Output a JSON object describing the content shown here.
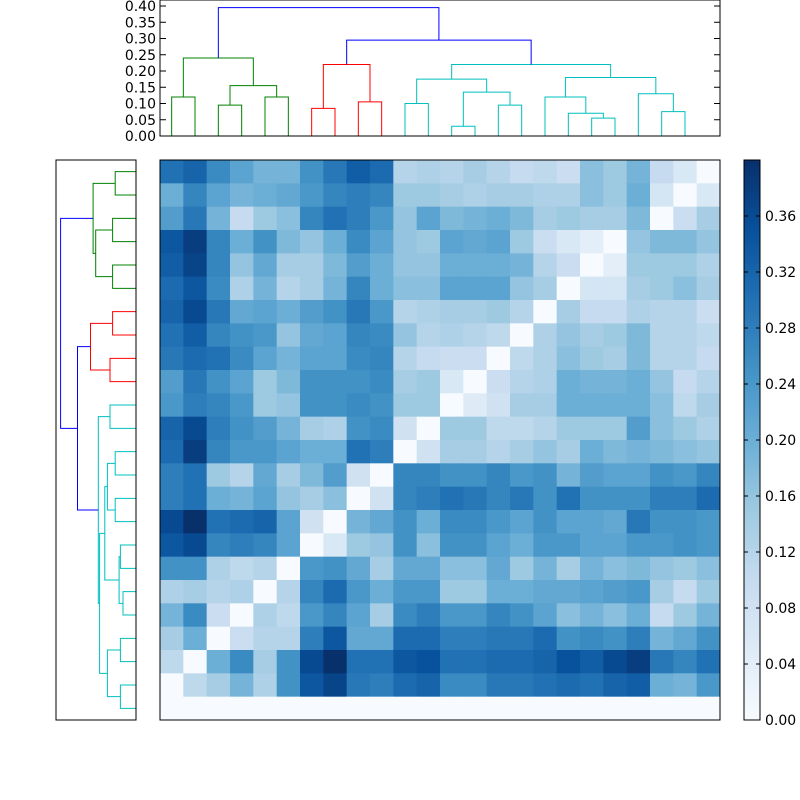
{
  "chart_data": [
    {
      "type": "dendrogram",
      "orientation": "top",
      "ylim": [
        0,
        0.4
      ],
      "ticks": [
        "0.00",
        "0.05",
        "0.10",
        "0.15",
        "0.20",
        "0.25",
        "0.30",
        "0.35",
        "0.40"
      ],
      "colors": {
        "cluster_1": "#008000",
        "cluster_2": "#ff0000",
        "cluster_3": "#00bfbf",
        "root": "#0000ff"
      },
      "links": [
        {
          "l": 0.5,
          "r": 1.5,
          "lh": 0.0,
          "rh": 0.0,
          "h": 0.12,
          "color": "#008000"
        },
        {
          "l": 2.5,
          "r": 3.5,
          "lh": 0.0,
          "rh": 0.0,
          "h": 0.095,
          "color": "#008000"
        },
        {
          "l": 4.5,
          "r": 5.5,
          "lh": 0.0,
          "rh": 0.0,
          "h": 0.12,
          "color": "#008000"
        },
        {
          "l": 3.0,
          "r": 5.0,
          "lh": 0.095,
          "rh": 0.12,
          "h": 0.155,
          "color": "#008000"
        },
        {
          "l": 1.0,
          "r": 4.0,
          "lh": 0.12,
          "rh": 0.155,
          "h": 0.24,
          "color": "#008000"
        },
        {
          "l": 6.5,
          "r": 7.5,
          "lh": 0.0,
          "rh": 0.0,
          "h": 0.085,
          "color": "#ff0000"
        },
        {
          "l": 8.5,
          "r": 9.5,
          "lh": 0.0,
          "rh": 0.0,
          "h": 0.105,
          "color": "#ff0000"
        },
        {
          "l": 7.0,
          "r": 9.0,
          "lh": 0.085,
          "rh": 0.105,
          "h": 0.22,
          "color": "#ff0000"
        },
        {
          "l": 10.5,
          "r": 11.5,
          "lh": 0.0,
          "rh": 0.0,
          "h": 0.1,
          "color": "#00bfbf"
        },
        {
          "l": 12.5,
          "r": 13.5,
          "lh": 0.0,
          "rh": 0.0,
          "h": 0.03,
          "color": "#00bfbf"
        },
        {
          "l": 14.5,
          "r": 15.5,
          "lh": 0.0,
          "rh": 0.0,
          "h": 0.095,
          "color": "#00bfbf"
        },
        {
          "l": 13.0,
          "r": 15.0,
          "lh": 0.03,
          "rh": 0.095,
          "h": 0.135,
          "color": "#00bfbf"
        },
        {
          "l": 11.0,
          "r": 14.0,
          "lh": 0.1,
          "rh": 0.135,
          "h": 0.175,
          "color": "#00bfbf"
        },
        {
          "l": 18.5,
          "r": 19.5,
          "lh": 0.0,
          "rh": 0.0,
          "h": 0.055,
          "color": "#00bfbf"
        },
        {
          "l": 17.5,
          "r": 19.0,
          "lh": 0.0,
          "rh": 0.055,
          "h": 0.07,
          "color": "#00bfbf"
        },
        {
          "l": 16.5,
          "r": 18.25,
          "lh": 0.0,
          "rh": 0.07,
          "h": 0.12,
          "color": "#00bfbf"
        },
        {
          "l": 21.5,
          "r": 22.5,
          "lh": 0.0,
          "rh": 0.0,
          "h": 0.075,
          "color": "#00bfbf"
        },
        {
          "l": 20.5,
          "r": 22.0,
          "lh": 0.0,
          "rh": 0.075,
          "h": 0.13,
          "color": "#00bfbf"
        },
        {
          "l": 17.375,
          "r": 21.25,
          "lh": 0.12,
          "rh": 0.13,
          "h": 0.18,
          "color": "#00bfbf"
        },
        {
          "l": 12.5,
          "r": 19.3125,
          "lh": 0.175,
          "rh": 0.18,
          "h": 0.22,
          "color": "#00bfbf"
        },
        {
          "l": 8.0,
          "r": 15.90625,
          "lh": 0.22,
          "rh": 0.22,
          "h": 0.295,
          "color": "#0000ff"
        },
        {
          "l": 2.5,
          "r": 11.953125,
          "lh": 0.24,
          "rh": 0.295,
          "h": 0.395,
          "color": "#0000ff"
        }
      ]
    },
    {
      "type": "dendrogram",
      "orientation": "left",
      "links": [
        {
          "l": 0.5,
          "r": 1.5,
          "lh": 0.0,
          "rh": 0.0,
          "h": 0.08,
          "color": "#008000"
        },
        {
          "l": 2.5,
          "r": 3.5,
          "lh": 0.0,
          "rh": 0.0,
          "h": 0.09,
          "color": "#008000"
        },
        {
          "l": 4.5,
          "r": 5.5,
          "lh": 0.0,
          "rh": 0.0,
          "h": 0.09,
          "color": "#008000"
        },
        {
          "l": 3.0,
          "r": 5.0,
          "lh": 0.09,
          "rh": 0.09,
          "h": 0.155,
          "color": "#008000"
        },
        {
          "l": 1.0,
          "r": 4.0,
          "lh": 0.08,
          "rh": 0.155,
          "h": 0.165,
          "color": "#008000"
        },
        {
          "l": 6.5,
          "r": 7.5,
          "lh": 0.0,
          "rh": 0.0,
          "h": 0.09,
          "color": "#ff0000"
        },
        {
          "l": 8.5,
          "r": 9.5,
          "lh": 0.0,
          "rh": 0.0,
          "h": 0.1,
          "color": "#ff0000"
        },
        {
          "l": 7.0,
          "r": 9.0,
          "lh": 0.09,
          "rh": 0.1,
          "h": 0.175,
          "color": "#ff0000"
        },
        {
          "l": 10.5,
          "r": 11.5,
          "lh": 0.0,
          "rh": 0.0,
          "h": 0.1,
          "color": "#00bfbf"
        },
        {
          "l": 12.5,
          "r": 13.5,
          "lh": 0.0,
          "rh": 0.0,
          "h": 0.08,
          "color": "#00bfbf"
        },
        {
          "l": 14.5,
          "r": 15.5,
          "lh": 0.0,
          "rh": 0.0,
          "h": 0.08,
          "color": "#00bfbf"
        },
        {
          "l": 13.0,
          "r": 15.0,
          "lh": 0.08,
          "rh": 0.08,
          "h": 0.11,
          "color": "#00bfbf"
        },
        {
          "l": 16.5,
          "r": 17.5,
          "lh": 0.0,
          "rh": 0.0,
          "h": 0.06,
          "color": "#00bfbf"
        },
        {
          "l": 18.5,
          "r": 19.5,
          "lh": 0.0,
          "rh": 0.0,
          "h": 0.05,
          "color": "#00bfbf"
        },
        {
          "l": 17.0,
          "r": 19.0,
          "lh": 0.06,
          "rh": 0.05,
          "h": 0.065,
          "color": "#00bfbf"
        },
        {
          "l": 14.0,
          "r": 18.0,
          "lh": 0.11,
          "rh": 0.065,
          "h": 0.12,
          "color": "#00bfbf"
        },
        {
          "l": 20.5,
          "r": 21.5,
          "lh": 0.0,
          "rh": 0.0,
          "h": 0.06,
          "color": "#00bfbf"
        },
        {
          "l": 22.5,
          "r": 23.5,
          "lh": 0.0,
          "rh": 0.0,
          "h": 0.06,
          "color": "#00bfbf"
        },
        {
          "l": 21.0,
          "r": 23.0,
          "lh": 0.06,
          "rh": 0.06,
          "h": 0.11,
          "color": "#00bfbf"
        },
        {
          "l": 16.0,
          "r": 22.0,
          "lh": 0.12,
          "rh": 0.11,
          "h": 0.14,
          "color": "#00bfbf"
        },
        {
          "l": 11.0,
          "r": 19.0,
          "lh": 0.1,
          "rh": 0.14,
          "h": 0.145,
          "color": "#00bfbf"
        },
        {
          "l": 8.0,
          "r": 15.0,
          "lh": 0.175,
          "rh": 0.145,
          "h": 0.225,
          "color": "#0000ff"
        },
        {
          "l": 2.5,
          "r": 11.5,
          "lh": 0.165,
          "rh": 0.225,
          "h": 0.29,
          "color": "#0000ff"
        }
      ]
    },
    {
      "type": "heatmap",
      "colormap": "Blues",
      "vmin": 0,
      "vmax": 0.4,
      "rows": 24,
      "cols": 24,
      "values": [
        [
          0.3,
          0.32,
          0.26,
          0.22,
          0.19,
          0.19,
          0.25,
          0.29,
          0.33,
          0.31,
          0.12,
          0.13,
          0.12,
          0.14,
          0.12,
          0.1,
          0.11,
          0.09,
          0.17,
          0.15,
          0.19,
          0.1,
          0.06,
          0.0
        ],
        [
          0.2,
          0.27,
          0.22,
          0.19,
          0.2,
          0.21,
          0.24,
          0.27,
          0.28,
          0.27,
          0.15,
          0.15,
          0.14,
          0.13,
          0.14,
          0.14,
          0.13,
          0.13,
          0.17,
          0.15,
          0.2,
          0.07,
          0.0,
          0.06
        ],
        [
          0.23,
          0.29,
          0.19,
          0.1,
          0.15,
          0.17,
          0.27,
          0.3,
          0.28,
          0.24,
          0.16,
          0.22,
          0.18,
          0.19,
          0.2,
          0.18,
          0.14,
          0.15,
          0.14,
          0.14,
          0.18,
          0.0,
          0.09,
          0.14
        ],
        [
          0.34,
          0.38,
          0.27,
          0.2,
          0.25,
          0.18,
          0.16,
          0.2,
          0.26,
          0.22,
          0.16,
          0.15,
          0.22,
          0.21,
          0.22,
          0.15,
          0.09,
          0.06,
          0.04,
          0.0,
          0.16,
          0.18,
          0.18,
          0.16
        ],
        [
          0.33,
          0.37,
          0.27,
          0.16,
          0.21,
          0.14,
          0.14,
          0.18,
          0.23,
          0.2,
          0.16,
          0.16,
          0.2,
          0.2,
          0.2,
          0.19,
          0.12,
          0.09,
          0.0,
          0.04,
          0.15,
          0.15,
          0.15,
          0.13
        ],
        [
          0.31,
          0.34,
          0.26,
          0.13,
          0.19,
          0.12,
          0.14,
          0.19,
          0.27,
          0.2,
          0.17,
          0.17,
          0.22,
          0.22,
          0.22,
          0.16,
          0.14,
          0.0,
          0.07,
          0.07,
          0.14,
          0.15,
          0.17,
          0.14
        ],
        [
          0.32,
          0.36,
          0.29,
          0.21,
          0.22,
          0.2,
          0.23,
          0.25,
          0.29,
          0.24,
          0.12,
          0.13,
          0.14,
          0.14,
          0.15,
          0.12,
          0.0,
          0.14,
          0.1,
          0.1,
          0.13,
          0.12,
          0.12,
          0.09
        ],
        [
          0.3,
          0.33,
          0.27,
          0.25,
          0.24,
          0.16,
          0.21,
          0.22,
          0.27,
          0.26,
          0.16,
          0.12,
          0.13,
          0.12,
          0.11,
          0.0,
          0.13,
          0.16,
          0.14,
          0.15,
          0.18,
          0.12,
          0.12,
          0.11
        ],
        [
          0.29,
          0.31,
          0.3,
          0.26,
          0.22,
          0.19,
          0.22,
          0.22,
          0.26,
          0.27,
          0.12,
          0.1,
          0.09,
          0.09,
          0.0,
          0.11,
          0.13,
          0.17,
          0.15,
          0.14,
          0.18,
          0.12,
          0.12,
          0.1
        ],
        [
          0.23,
          0.29,
          0.25,
          0.22,
          0.15,
          0.18,
          0.25,
          0.25,
          0.25,
          0.26,
          0.14,
          0.15,
          0.06,
          0.0,
          0.09,
          0.12,
          0.13,
          0.2,
          0.19,
          0.19,
          0.2,
          0.16,
          0.1,
          0.12
        ],
        [
          0.24,
          0.28,
          0.27,
          0.24,
          0.15,
          0.16,
          0.25,
          0.25,
          0.26,
          0.25,
          0.15,
          0.15,
          0.0,
          0.05,
          0.08,
          0.14,
          0.14,
          0.2,
          0.2,
          0.2,
          0.2,
          0.17,
          0.11,
          0.14
        ],
        [
          0.32,
          0.36,
          0.28,
          0.25,
          0.23,
          0.19,
          0.14,
          0.13,
          0.25,
          0.26,
          0.08,
          0.0,
          0.15,
          0.15,
          0.11,
          0.11,
          0.12,
          0.15,
          0.15,
          0.15,
          0.23,
          0.17,
          0.15,
          0.13
        ],
        [
          0.31,
          0.38,
          0.27,
          0.24,
          0.24,
          0.22,
          0.2,
          0.2,
          0.3,
          0.28,
          0.0,
          0.08,
          0.14,
          0.14,
          0.12,
          0.14,
          0.16,
          0.14,
          0.2,
          0.18,
          0.19,
          0.18,
          0.17,
          0.16
        ],
        [
          0.28,
          0.3,
          0.15,
          0.12,
          0.21,
          0.14,
          0.18,
          0.23,
          0.08,
          0.0,
          0.27,
          0.27,
          0.25,
          0.25,
          0.27,
          0.24,
          0.25,
          0.19,
          0.23,
          0.22,
          0.22,
          0.25,
          0.24,
          0.27
        ],
        [
          0.28,
          0.3,
          0.2,
          0.19,
          0.22,
          0.16,
          0.14,
          0.17,
          0.0,
          0.08,
          0.27,
          0.28,
          0.3,
          0.29,
          0.27,
          0.29,
          0.25,
          0.3,
          0.25,
          0.25,
          0.25,
          0.28,
          0.28,
          0.31
        ],
        [
          0.36,
          0.4,
          0.3,
          0.31,
          0.32,
          0.22,
          0.08,
          0.0,
          0.19,
          0.21,
          0.25,
          0.2,
          0.26,
          0.26,
          0.24,
          0.22,
          0.25,
          0.22,
          0.22,
          0.21,
          0.29,
          0.25,
          0.25,
          0.24
        ],
        [
          0.34,
          0.36,
          0.27,
          0.28,
          0.27,
          0.22,
          0.0,
          0.06,
          0.15,
          0.16,
          0.25,
          0.17,
          0.25,
          0.25,
          0.22,
          0.2,
          0.24,
          0.24,
          0.22,
          0.22,
          0.24,
          0.24,
          0.25,
          0.24
        ],
        [
          0.25,
          0.25,
          0.13,
          0.11,
          0.12,
          0.0,
          0.24,
          0.25,
          0.21,
          0.14,
          0.21,
          0.21,
          0.17,
          0.17,
          0.21,
          0.15,
          0.19,
          0.14,
          0.19,
          0.17,
          0.18,
          0.16,
          0.15,
          0.17
        ],
        [
          0.13,
          0.14,
          0.12,
          0.13,
          0.0,
          0.12,
          0.27,
          0.31,
          0.24,
          0.2,
          0.24,
          0.24,
          0.15,
          0.15,
          0.2,
          0.2,
          0.21,
          0.21,
          0.22,
          0.23,
          0.24,
          0.14,
          0.1,
          0.15
        ],
        [
          0.19,
          0.26,
          0.09,
          0.0,
          0.13,
          0.11,
          0.24,
          0.27,
          0.22,
          0.14,
          0.26,
          0.28,
          0.24,
          0.24,
          0.27,
          0.25,
          0.22,
          0.17,
          0.19,
          0.17,
          0.2,
          0.1,
          0.15,
          0.19
        ],
        [
          0.14,
          0.2,
          0.0,
          0.09,
          0.12,
          0.12,
          0.28,
          0.34,
          0.21,
          0.21,
          0.31,
          0.31,
          0.28,
          0.28,
          0.29,
          0.29,
          0.31,
          0.25,
          0.26,
          0.25,
          0.28,
          0.19,
          0.21,
          0.25
        ],
        [
          0.11,
          0.0,
          0.2,
          0.26,
          0.14,
          0.25,
          0.36,
          0.4,
          0.3,
          0.3,
          0.34,
          0.35,
          0.3,
          0.3,
          0.31,
          0.31,
          0.32,
          0.35,
          0.33,
          0.36,
          0.38,
          0.29,
          0.27,
          0.3
        ],
        [
          0.0,
          0.11,
          0.14,
          0.19,
          0.13,
          0.25,
          0.34,
          0.37,
          0.29,
          0.28,
          0.31,
          0.32,
          0.26,
          0.26,
          0.29,
          0.29,
          0.3,
          0.31,
          0.3,
          0.32,
          0.33,
          0.2,
          0.19,
          0.24
        ],
        [
          0.0,
          0.0,
          0.0,
          0.0,
          0.0,
          0.0,
          0.0,
          0.0,
          0.0,
          0.0,
          0.0,
          0.0,
          0.0,
          0.0,
          0.0,
          0.0,
          0.0,
          0.0,
          0.0,
          0.0,
          0.0,
          0.0,
          0.0,
          0.0
        ]
      ]
    },
    {
      "type": "colorbar",
      "colormap": "Blues",
      "vmin": 0,
      "vmax": 0.4,
      "ticks": [
        "0.00",
        "0.04",
        "0.08",
        "0.12",
        "0.16",
        "0.20",
        "0.24",
        "0.28",
        "0.32",
        "0.36"
      ]
    }
  ]
}
